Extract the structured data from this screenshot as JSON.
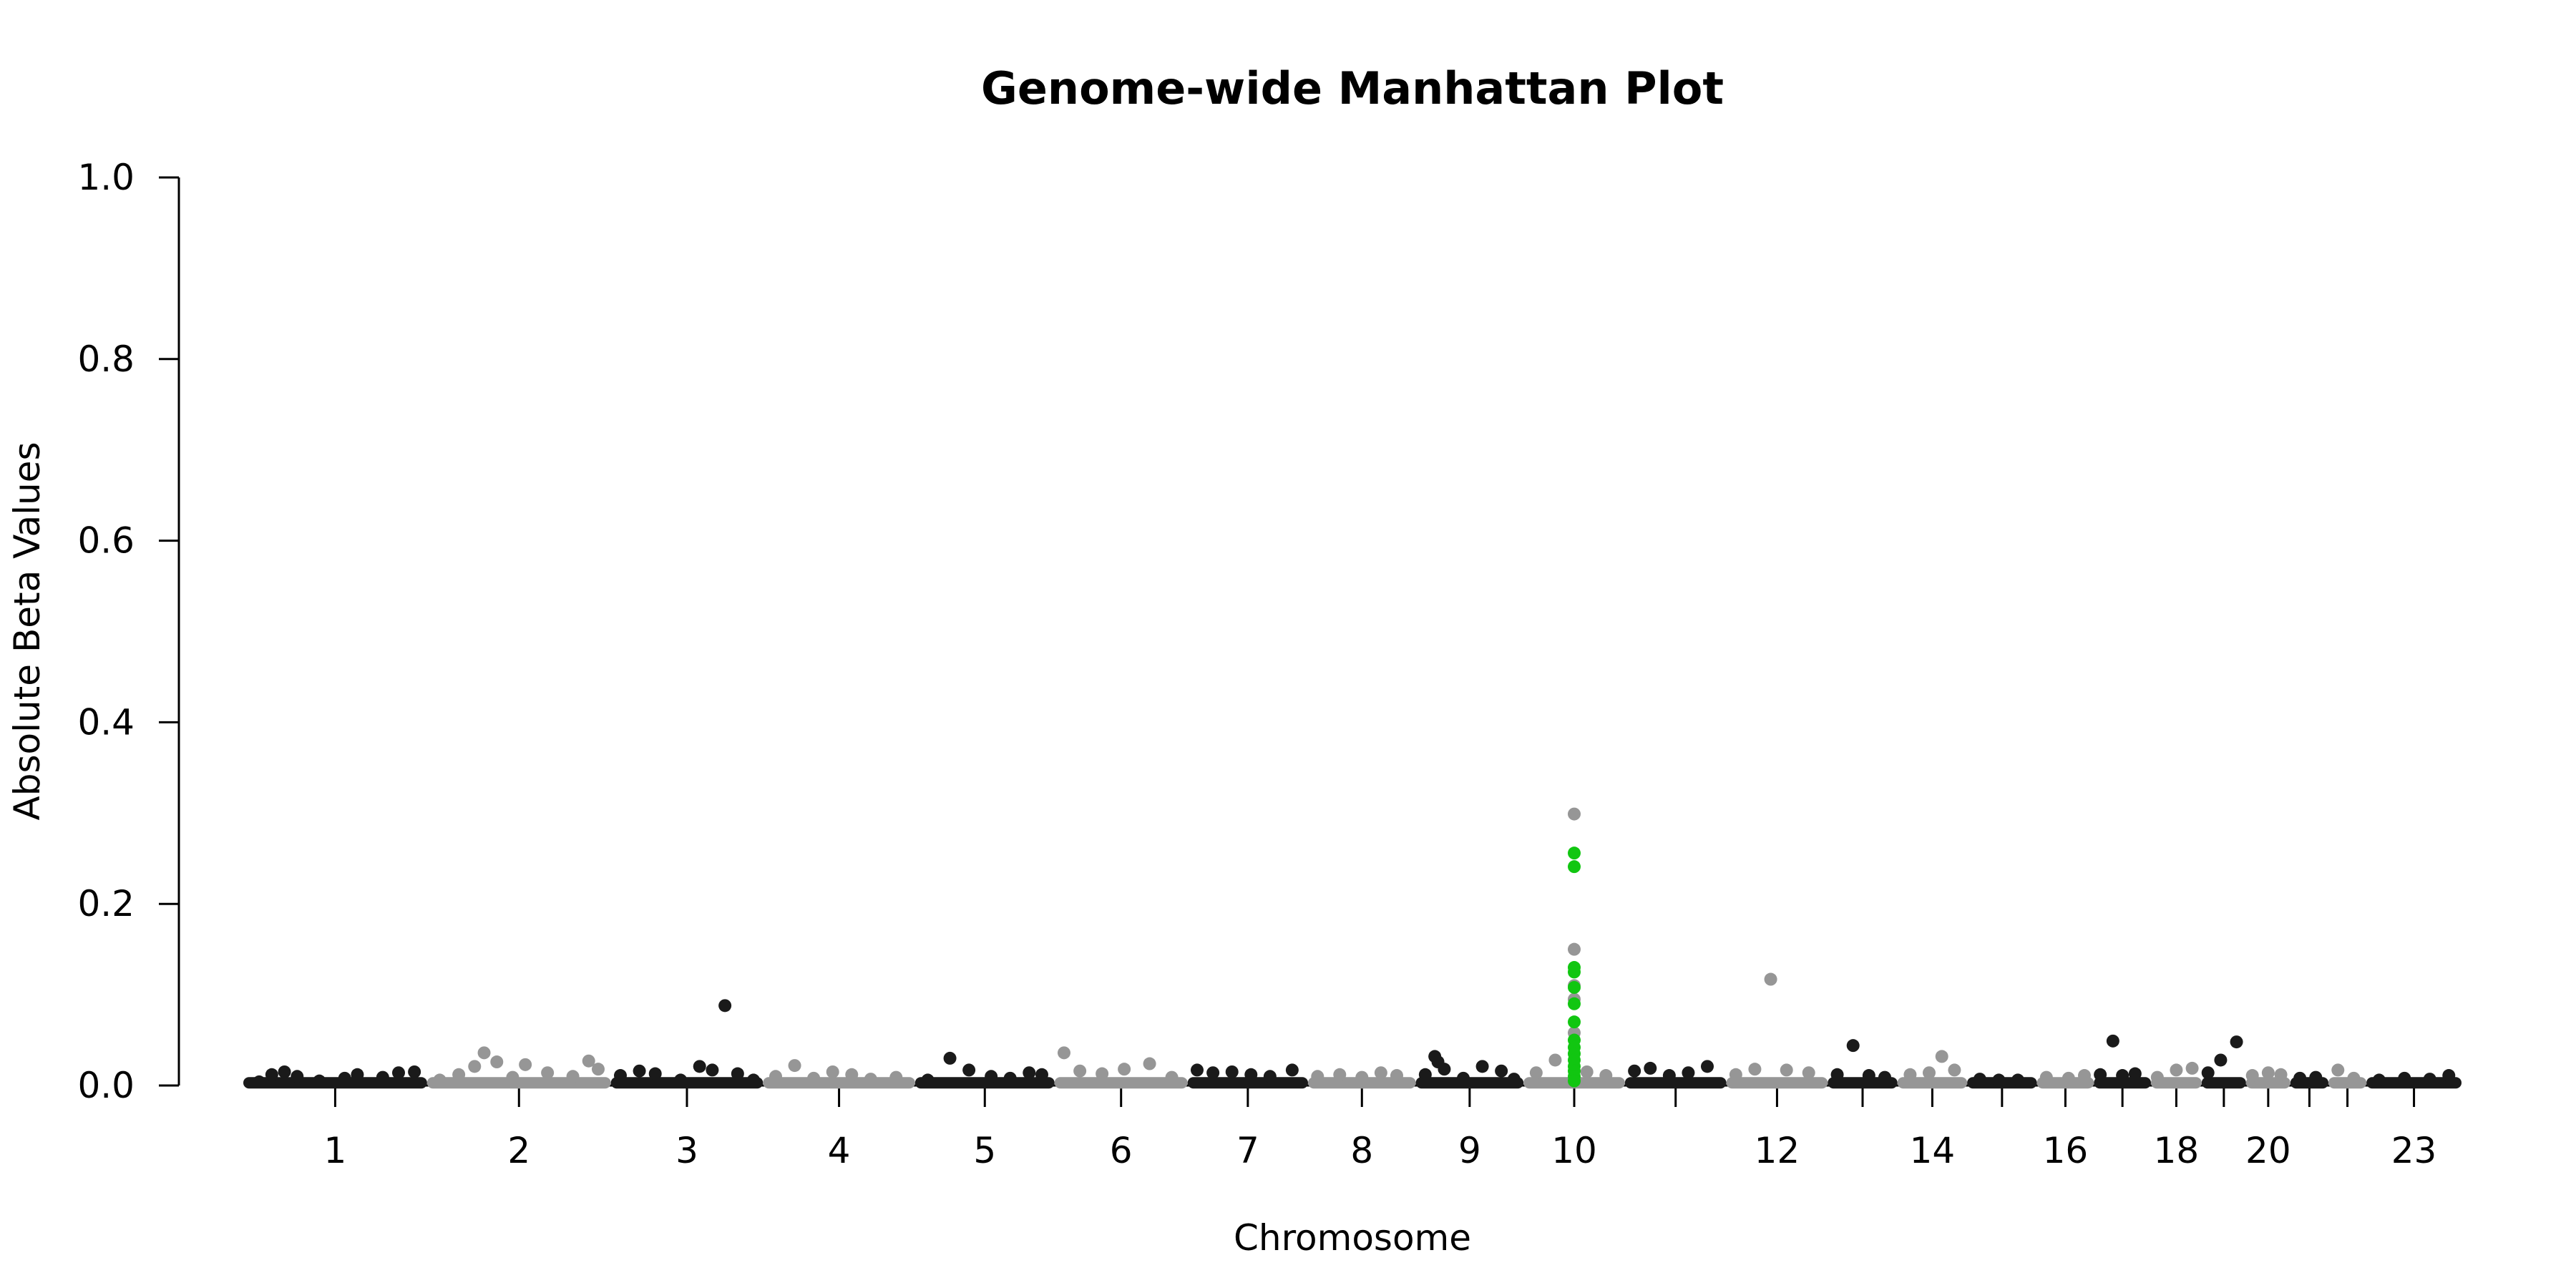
{
  "chart_data": {
    "type": "scatter",
    "title": "Genome-wide Manhattan Plot",
    "xlabel": "Chromosome",
    "ylabel": "Absolute Beta Values",
    "ylim": [
      0,
      1.0
    ],
    "y_ticks": [
      "0.0",
      "0.2",
      "0.4",
      "0.6",
      "0.8",
      "1.0"
    ],
    "x_tick_labels": [
      "1",
      "2",
      "3",
      "4",
      "5",
      "6",
      "7",
      "8",
      "9",
      "10",
      "12",
      "14",
      "16",
      "18",
      "20",
      "23"
    ],
    "grid": false,
    "legend": "none",
    "colors": {
      "odd_chromosome": "#1a1a1a",
      "even_chromosome": "#969696",
      "highlight": "#11c611"
    },
    "chromosomes": [
      {
        "chr": "1",
        "start": 0,
        "end": 2.9
      },
      {
        "chr": "2",
        "start": 2.9,
        "end": 5.8
      },
      {
        "chr": "3",
        "start": 5.8,
        "end": 8.2
      },
      {
        "chr": "4",
        "start": 8.2,
        "end": 10.6
      },
      {
        "chr": "5",
        "start": 10.6,
        "end": 12.8
      },
      {
        "chr": "6",
        "start": 12.8,
        "end": 14.9
      },
      {
        "chr": "7",
        "start": 14.9,
        "end": 16.8
      },
      {
        "chr": "8",
        "start": 16.8,
        "end": 18.5
      },
      {
        "chr": "9",
        "start": 18.5,
        "end": 20.2
      },
      {
        "chr": "10",
        "start": 20.2,
        "end": 21.8
      },
      {
        "chr": "11",
        "start": 21.8,
        "end": 23.4
      },
      {
        "chr": "12",
        "start": 23.4,
        "end": 25.0
      },
      {
        "chr": "13",
        "start": 25.0,
        "end": 26.1
      },
      {
        "chr": "14",
        "start": 26.1,
        "end": 27.2
      },
      {
        "chr": "15",
        "start": 27.2,
        "end": 28.3
      },
      {
        "chr": "16",
        "start": 28.3,
        "end": 29.2
      },
      {
        "chr": "17",
        "start": 29.2,
        "end": 30.1
      },
      {
        "chr": "18",
        "start": 30.1,
        "end": 30.9
      },
      {
        "chr": "19",
        "start": 30.9,
        "end": 31.6
      },
      {
        "chr": "20",
        "start": 31.6,
        "end": 32.3
      },
      {
        "chr": "21",
        "start": 32.3,
        "end": 32.9
      },
      {
        "chr": "22",
        "start": 32.9,
        "end": 33.5
      },
      {
        "chr": "23",
        "start": 33.5,
        "end": 35.0
      }
    ],
    "points": [
      {
        "chr": "1",
        "x": 0.25,
        "y": 0.004
      },
      {
        "chr": "1",
        "x": 0.45,
        "y": 0.012
      },
      {
        "chr": "1",
        "x": 0.65,
        "y": 0.015
      },
      {
        "chr": "1",
        "x": 0.85,
        "y": 0.01
      },
      {
        "chr": "1",
        "x": 1.2,
        "y": 0.005
      },
      {
        "chr": "1",
        "x": 1.6,
        "y": 0.008
      },
      {
        "chr": "1",
        "x": 1.8,
        "y": 0.012
      },
      {
        "chr": "1",
        "x": 2.2,
        "y": 0.009
      },
      {
        "chr": "1",
        "x": 2.45,
        "y": 0.014
      },
      {
        "chr": "1",
        "x": 2.7,
        "y": 0.015
      },
      {
        "chr": "2",
        "x": 3.1,
        "y": 0.006
      },
      {
        "chr": "2",
        "x": 3.4,
        "y": 0.012
      },
      {
        "chr": "2",
        "x": 3.65,
        "y": 0.021
      },
      {
        "chr": "2",
        "x": 3.8,
        "y": 0.036
      },
      {
        "chr": "2",
        "x": 4.0,
        "y": 0.026
      },
      {
        "chr": "2",
        "x": 4.25,
        "y": 0.009
      },
      {
        "chr": "2",
        "x": 4.45,
        "y": 0.023
      },
      {
        "chr": "2",
        "x": 4.8,
        "y": 0.014
      },
      {
        "chr": "2",
        "x": 5.2,
        "y": 0.01
      },
      {
        "chr": "2",
        "x": 5.45,
        "y": 0.027
      },
      {
        "chr": "2",
        "x": 5.6,
        "y": 0.018
      },
      {
        "chr": "3",
        "x": 5.95,
        "y": 0.011
      },
      {
        "chr": "3",
        "x": 6.25,
        "y": 0.016
      },
      {
        "chr": "3",
        "x": 6.5,
        "y": 0.013
      },
      {
        "chr": "3",
        "x": 6.9,
        "y": 0.006
      },
      {
        "chr": "3",
        "x": 7.2,
        "y": 0.021
      },
      {
        "chr": "3",
        "x": 7.4,
        "y": 0.017
      },
      {
        "chr": "3",
        "x": 7.6,
        "y": 0.088
      },
      {
        "chr": "3",
        "x": 7.8,
        "y": 0.013
      },
      {
        "chr": "3",
        "x": 8.05,
        "y": 0.006
      },
      {
        "chr": "4",
        "x": 8.4,
        "y": 0.01
      },
      {
        "chr": "4",
        "x": 8.7,
        "y": 0.022
      },
      {
        "chr": "4",
        "x": 9.0,
        "y": 0.008
      },
      {
        "chr": "4",
        "x": 9.3,
        "y": 0.015
      },
      {
        "chr": "4",
        "x": 9.6,
        "y": 0.012
      },
      {
        "chr": "4",
        "x": 9.9,
        "y": 0.007
      },
      {
        "chr": "4",
        "x": 10.3,
        "y": 0.009
      },
      {
        "chr": "5",
        "x": 10.8,
        "y": 0.006
      },
      {
        "chr": "5",
        "x": 11.15,
        "y": 0.03
      },
      {
        "chr": "5",
        "x": 11.45,
        "y": 0.017
      },
      {
        "chr": "5",
        "x": 11.8,
        "y": 0.01
      },
      {
        "chr": "5",
        "x": 12.1,
        "y": 0.008
      },
      {
        "chr": "5",
        "x": 12.4,
        "y": 0.014
      },
      {
        "chr": "5",
        "x": 12.6,
        "y": 0.012
      },
      {
        "chr": "6",
        "x": 12.95,
        "y": 0.036
      },
      {
        "chr": "6",
        "x": 13.2,
        "y": 0.016
      },
      {
        "chr": "6",
        "x": 13.55,
        "y": 0.013
      },
      {
        "chr": "6",
        "x": 13.9,
        "y": 0.018
      },
      {
        "chr": "6",
        "x": 14.3,
        "y": 0.024
      },
      {
        "chr": "6",
        "x": 14.65,
        "y": 0.009
      },
      {
        "chr": "7",
        "x": 15.05,
        "y": 0.017
      },
      {
        "chr": "7",
        "x": 15.3,
        "y": 0.014
      },
      {
        "chr": "7",
        "x": 15.6,
        "y": 0.015
      },
      {
        "chr": "7",
        "x": 15.9,
        "y": 0.012
      },
      {
        "chr": "7",
        "x": 16.2,
        "y": 0.01
      },
      {
        "chr": "7",
        "x": 16.55,
        "y": 0.017
      },
      {
        "chr": "8",
        "x": 16.95,
        "y": 0.01
      },
      {
        "chr": "8",
        "x": 17.3,
        "y": 0.012
      },
      {
        "chr": "8",
        "x": 17.65,
        "y": 0.009
      },
      {
        "chr": "8",
        "x": 17.95,
        "y": 0.014
      },
      {
        "chr": "8",
        "x": 18.2,
        "y": 0.011
      },
      {
        "chr": "9",
        "x": 18.65,
        "y": 0.012
      },
      {
        "chr": "9",
        "x": 18.8,
        "y": 0.032
      },
      {
        "chr": "9",
        "x": 18.85,
        "y": 0.026
      },
      {
        "chr": "9",
        "x": 18.95,
        "y": 0.018
      },
      {
        "chr": "9",
        "x": 19.25,
        "y": 0.008
      },
      {
        "chr": "9",
        "x": 19.55,
        "y": 0.021
      },
      {
        "chr": "9",
        "x": 19.85,
        "y": 0.016
      },
      {
        "chr": "9",
        "x": 20.05,
        "y": 0.007
      },
      {
        "chr": "10",
        "x": 20.4,
        "y": 0.014
      },
      {
        "chr": "10",
        "x": 20.7,
        "y": 0.028
      },
      {
        "chr": "10",
        "x": 21.0,
        "y": 0.299
      },
      {
        "chr": "10",
        "x": 21.0,
        "y": 0.15
      },
      {
        "chr": "10",
        "x": 21.0,
        "y": 0.11
      },
      {
        "chr": "10",
        "x": 21.0,
        "y": 0.095
      },
      {
        "chr": "10",
        "x": 21.0,
        "y": 0.058
      },
      {
        "chr": "10",
        "x": 21.2,
        "y": 0.015
      },
      {
        "chr": "10",
        "x": 21.5,
        "y": 0.011
      },
      {
        "chr": "11",
        "x": 21.95,
        "y": 0.016
      },
      {
        "chr": "11",
        "x": 22.2,
        "y": 0.019
      },
      {
        "chr": "11",
        "x": 22.5,
        "y": 0.011
      },
      {
        "chr": "11",
        "x": 22.8,
        "y": 0.014
      },
      {
        "chr": "11",
        "x": 23.1,
        "y": 0.021
      },
      {
        "chr": "12",
        "x": 23.55,
        "y": 0.012
      },
      {
        "chr": "12",
        "x": 23.85,
        "y": 0.018
      },
      {
        "chr": "12",
        "x": 24.1,
        "y": 0.117
      },
      {
        "chr": "12",
        "x": 24.35,
        "y": 0.017
      },
      {
        "chr": "12",
        "x": 24.7,
        "y": 0.014
      },
      {
        "chr": "13",
        "x": 25.15,
        "y": 0.012
      },
      {
        "chr": "13",
        "x": 25.4,
        "y": 0.044
      },
      {
        "chr": "13",
        "x": 25.65,
        "y": 0.011
      },
      {
        "chr": "13",
        "x": 25.9,
        "y": 0.009
      },
      {
        "chr": "14",
        "x": 26.3,
        "y": 0.012
      },
      {
        "chr": "14",
        "x": 26.6,
        "y": 0.014
      },
      {
        "chr": "14",
        "x": 26.8,
        "y": 0.032
      },
      {
        "chr": "14",
        "x": 27.0,
        "y": 0.017
      },
      {
        "chr": "15",
        "x": 27.4,
        "y": 0.007
      },
      {
        "chr": "15",
        "x": 27.7,
        "y": 0.006
      },
      {
        "chr": "15",
        "x": 28.0,
        "y": 0.006
      },
      {
        "chr": "16",
        "x": 28.45,
        "y": 0.009
      },
      {
        "chr": "16",
        "x": 28.8,
        "y": 0.008
      },
      {
        "chr": "16",
        "x": 29.05,
        "y": 0.011
      },
      {
        "chr": "17",
        "x": 29.3,
        "y": 0.012
      },
      {
        "chr": "17",
        "x": 29.5,
        "y": 0.049
      },
      {
        "chr": "17",
        "x": 29.65,
        "y": 0.011
      },
      {
        "chr": "17",
        "x": 29.85,
        "y": 0.013
      },
      {
        "chr": "18",
        "x": 30.2,
        "y": 0.009
      },
      {
        "chr": "18",
        "x": 30.5,
        "y": 0.017
      },
      {
        "chr": "18",
        "x": 30.75,
        "y": 0.019
      },
      {
        "chr": "19",
        "x": 31.0,
        "y": 0.014
      },
      {
        "chr": "19",
        "x": 31.2,
        "y": 0.028
      },
      {
        "chr": "19",
        "x": 31.45,
        "y": 0.048
      },
      {
        "chr": "20",
        "x": 31.7,
        "y": 0.011
      },
      {
        "chr": "20",
        "x": 31.95,
        "y": 0.014
      },
      {
        "chr": "20",
        "x": 32.15,
        "y": 0.012
      },
      {
        "chr": "21",
        "x": 32.45,
        "y": 0.008
      },
      {
        "chr": "21",
        "x": 32.7,
        "y": 0.009
      },
      {
        "chr": "22",
        "x": 33.05,
        "y": 0.017
      },
      {
        "chr": "22",
        "x": 33.3,
        "y": 0.008
      },
      {
        "chr": "23",
        "x": 33.7,
        "y": 0.006
      },
      {
        "chr": "23",
        "x": 34.1,
        "y": 0.008
      },
      {
        "chr": "23",
        "x": 34.5,
        "y": 0.007
      },
      {
        "chr": "23",
        "x": 34.8,
        "y": 0.011
      }
    ],
    "highlight_points": [
      {
        "x": 21.0,
        "y": 0.256
      },
      {
        "x": 21.0,
        "y": 0.241
      },
      {
        "x": 21.0,
        "y": 0.13
      },
      {
        "x": 21.0,
        "y": 0.125
      },
      {
        "x": 21.0,
        "y": 0.108
      },
      {
        "x": 21.0,
        "y": 0.09
      },
      {
        "x": 21.0,
        "y": 0.07
      },
      {
        "x": 21.0,
        "y": 0.05
      },
      {
        "x": 21.0,
        "y": 0.042
      },
      {
        "x": 21.0,
        "y": 0.035
      },
      {
        "x": 21.0,
        "y": 0.028
      },
      {
        "x": 21.0,
        "y": 0.021
      },
      {
        "x": 21.0,
        "y": 0.016
      },
      {
        "x": 21.0,
        "y": 0.01
      },
      {
        "x": 21.0,
        "y": 0.005
      }
    ]
  }
}
